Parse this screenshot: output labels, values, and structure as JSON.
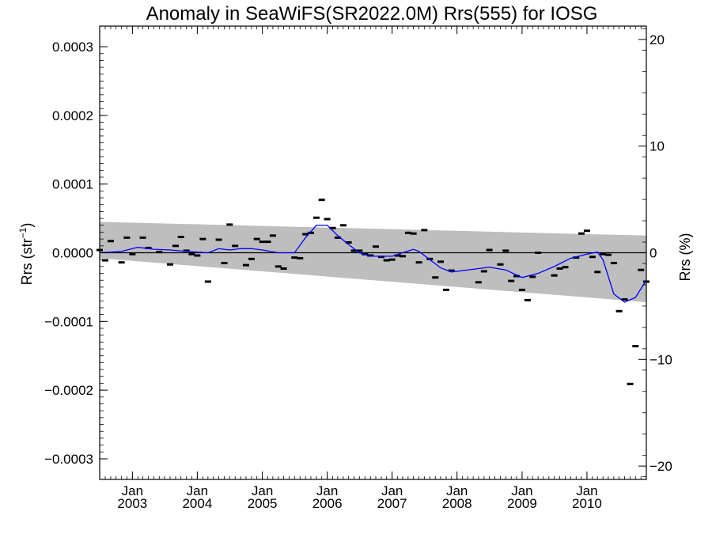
{
  "chart_data": {
    "type": "scatter",
    "title": "Anomaly in SeaWiFS(SR2022.0M) Rrs(555) for IOSG",
    "ylabel_left_base": "Rrs (str",
    "ylabel_left_sup": "−1",
    "ylabel_left_close": ")",
    "ylabel_right": "Rrs (%)",
    "x_range": [
      "2002-07-01",
      "2010-12-01"
    ],
    "y_range_left": [
      -0.00033,
      0.00033
    ],
    "y_range_right": [
      -21.25,
      21.25
    ],
    "x_ticks": [
      {
        "date": "2003-01-01",
        "month": "Jan",
        "year": "2003"
      },
      {
        "date": "2004-01-01",
        "month": "Jan",
        "year": "2004"
      },
      {
        "date": "2005-01-01",
        "month": "Jan",
        "year": "2005"
      },
      {
        "date": "2006-01-01",
        "month": "Jan",
        "year": "2006"
      },
      {
        "date": "2007-01-01",
        "month": "Jan",
        "year": "2007"
      },
      {
        "date": "2008-01-01",
        "month": "Jan",
        "year": "2008"
      },
      {
        "date": "2009-01-01",
        "month": "Jan",
        "year": "2009"
      },
      {
        "date": "2010-01-01",
        "month": "Jan",
        "year": "2010"
      }
    ],
    "y_ticks_left": [
      {
        "value": 0.0003,
        "label": "0.0003"
      },
      {
        "value": 0.0002,
        "label": "0.0002"
      },
      {
        "value": 0.0001,
        "label": "0.0001"
      },
      {
        "value": 0,
        "label": "0.0000"
      },
      {
        "value": -0.0001,
        "label": "−0.0001"
      },
      {
        "value": -0.0002,
        "label": "−0.0002"
      },
      {
        "value": -0.0003,
        "label": "−0.0003"
      }
    ],
    "y_ticks_right": [
      {
        "value": 20,
        "label": "20"
      },
      {
        "value": 10,
        "label": "10"
      },
      {
        "value": 0,
        "label": "0"
      },
      {
        "value": -10,
        "label": "−10"
      },
      {
        "value": -20,
        "label": "−20"
      }
    ],
    "zero_line": 0,
    "uncertainty_band": {
      "x": [
        "2002-07-01",
        "2010-12-01"
      ],
      "upper": [
        4.5e-05,
        2.5e-05
      ],
      "lower": [
        -8e-06,
        -7.2e-05
      ],
      "color": "#bebebe"
    },
    "colors": {
      "points": "#000000",
      "smooth": "#0000ff",
      "band": "#bebebe",
      "zero": "#000000"
    },
    "series": [
      {
        "kind": "monthly_anomaly",
        "points": [
          [
            "2002-07-01",
            4e-06
          ],
          [
            "2002-08-01",
            -1.1e-05
          ],
          [
            "2002-09-01",
            1.7e-05
          ],
          [
            "2002-11-01",
            -1.4e-05
          ],
          [
            "2002-12-01",
            2.2e-05
          ],
          [
            "2003-01-01",
            -2e-06
          ],
          [
            "2003-03-01",
            2.2e-05
          ],
          [
            "2003-04-01",
            7e-06
          ],
          [
            "2003-06-01",
            1e-06
          ],
          [
            "2003-08-01",
            -1.7e-05
          ],
          [
            "2003-09-01",
            1e-05
          ],
          [
            "2003-10-01",
            2.3e-05
          ],
          [
            "2003-11-01",
            3e-06
          ],
          [
            "2003-12-01",
            -2e-06
          ],
          [
            "2004-01-01",
            -4e-06
          ],
          [
            "2004-02-01",
            2e-05
          ],
          [
            "2004-03-01",
            -4.2e-05
          ],
          [
            "2004-05-01",
            1.9e-05
          ],
          [
            "2004-06-01",
            -1.5e-05
          ],
          [
            "2004-07-01",
            4.1e-05
          ],
          [
            "2004-08-01",
            1e-05
          ],
          [
            "2004-10-01",
            -1.8e-05
          ],
          [
            "2004-11-01",
            -9e-06
          ],
          [
            "2004-12-01",
            2e-05
          ],
          [
            "2005-01-01",
            1.6e-05
          ],
          [
            "2005-02-01",
            1.6e-05
          ],
          [
            "2005-03-01",
            2.5e-05
          ],
          [
            "2005-04-01",
            -2e-05
          ],
          [
            "2005-05-01",
            -2.3e-05
          ],
          [
            "2005-07-01",
            -7e-06
          ],
          [
            "2005-08-01",
            -8e-06
          ],
          [
            "2005-09-01",
            2.7e-05
          ],
          [
            "2005-10-01",
            2.9e-05
          ],
          [
            "2005-11-01",
            5.1e-05
          ],
          [
            "2005-12-01",
            7.7e-05
          ],
          [
            "2006-01-01",
            4.9e-05
          ],
          [
            "2006-02-01",
            3.6e-05
          ],
          [
            "2006-03-01",
            2.2e-05
          ],
          [
            "2006-04-01",
            4e-05
          ],
          [
            "2006-05-01",
            1.5e-05
          ],
          [
            "2006-06-01",
            3e-06
          ],
          [
            "2006-07-01",
            3e-06
          ],
          [
            "2006-08-01",
            -2e-06
          ],
          [
            "2006-09-01",
            -4e-06
          ],
          [
            "2006-10-01",
            9e-06
          ],
          [
            "2006-11-01",
            -6e-06
          ],
          [
            "2006-12-01",
            -1.1e-05
          ],
          [
            "2007-01-01",
            -1e-05
          ],
          [
            "2007-02-01",
            -4e-06
          ],
          [
            "2007-03-01",
            -5e-06
          ],
          [
            "2007-04-01",
            2.9e-05
          ],
          [
            "2007-05-01",
            2.8e-05
          ],
          [
            "2007-06-01",
            -1.4e-05
          ],
          [
            "2007-07-01",
            3.3e-05
          ],
          [
            "2007-08-01",
            -9e-06
          ],
          [
            "2007-09-01",
            -3.6e-05
          ],
          [
            "2007-10-01",
            -1.3e-05
          ],
          [
            "2007-11-01",
            -5.4e-05
          ],
          [
            "2007-12-01",
            -2.6e-05
          ],
          [
            "2008-05-01",
            -4.3e-05
          ],
          [
            "2008-06-01",
            -2.7e-05
          ],
          [
            "2008-07-01",
            4e-06
          ],
          [
            "2008-09-01",
            -1.7e-05
          ],
          [
            "2008-10-01",
            3e-06
          ],
          [
            "2008-11-01",
            -4.1e-05
          ],
          [
            "2008-12-01",
            -3.4e-05
          ],
          [
            "2009-01-01",
            -5.4e-05
          ],
          [
            "2009-02-01",
            -6.9e-05
          ],
          [
            "2009-03-01",
            -3.5e-05
          ],
          [
            "2009-04-01",
            0.0
          ],
          [
            "2009-07-01",
            -3.3e-05
          ],
          [
            "2009-08-01",
            -2.3e-05
          ],
          [
            "2009-09-01",
            -2.1e-05
          ],
          [
            "2009-11-01",
            -7e-06
          ],
          [
            "2009-12-01",
            2.8e-05
          ],
          [
            "2010-01-01",
            3.2e-05
          ],
          [
            "2010-02-01",
            -6e-06
          ],
          [
            "2010-03-01",
            -2.8e-05
          ],
          [
            "2010-04-01",
            -2e-06
          ],
          [
            "2010-05-01",
            -3e-06
          ],
          [
            "2010-06-01",
            -1.5e-05
          ],
          [
            "2010-07-01",
            -8.5e-05
          ],
          [
            "2010-08-01",
            -6.8e-05
          ],
          [
            "2010-09-01",
            -0.000191
          ],
          [
            "2010-10-01",
            -0.000136
          ],
          [
            "2010-11-01",
            -2.5e-05
          ],
          [
            "2010-12-01",
            -4.2e-05
          ]
        ]
      },
      {
        "kind": "smoothed",
        "points": [
          [
            "2002-07-01",
            0.0
          ],
          [
            "2002-11-01",
            2e-06
          ],
          [
            "2003-02-01",
            8e-06
          ],
          [
            "2003-05-01",
            5e-06
          ],
          [
            "2003-08-01",
            4e-06
          ],
          [
            "2003-11-01",
            2e-06
          ],
          [
            "2004-01-01",
            1e-06
          ],
          [
            "2004-03-01",
            0.0
          ],
          [
            "2004-05-01",
            6e-06
          ],
          [
            "2004-07-01",
            4e-06
          ],
          [
            "2004-09-01",
            6e-06
          ],
          [
            "2004-11-01",
            6e-06
          ],
          [
            "2005-01-01",
            4e-06
          ],
          [
            "2005-04-01",
            0.0
          ],
          [
            "2005-07-01",
            0.0
          ],
          [
            "2005-09-01",
            2.2e-05
          ],
          [
            "2005-11-01",
            4e-05
          ],
          [
            "2006-01-01",
            4e-05
          ],
          [
            "2006-03-01",
            2.5e-05
          ],
          [
            "2006-05-01",
            1.2e-05
          ],
          [
            "2006-07-01",
            0.0
          ],
          [
            "2006-09-01",
            -5e-06
          ],
          [
            "2007-01-01",
            -5e-06
          ],
          [
            "2007-03-01",
            0.0
          ],
          [
            "2007-05-01",
            5e-06
          ],
          [
            "2007-06-01",
            2e-06
          ],
          [
            "2007-08-01",
            -1e-05
          ],
          [
            "2007-10-01",
            -2.2e-05
          ],
          [
            "2007-12-01",
            -2.8e-05
          ],
          [
            "2008-04-01",
            -2.4e-05
          ],
          [
            "2008-07-01",
            -2.1e-05
          ],
          [
            "2008-10-01",
            -2.5e-05
          ],
          [
            "2009-01-01",
            -3.6e-05
          ],
          [
            "2009-04-01",
            -3e-05
          ],
          [
            "2009-07-01",
            -2e-05
          ],
          [
            "2009-10-01",
            -8e-06
          ],
          [
            "2010-01-01",
            -2e-06
          ],
          [
            "2010-03-01",
            1e-06
          ],
          [
            "2010-04-01",
            -1e-05
          ],
          [
            "2010-06-01",
            -6e-05
          ],
          [
            "2010-08-01",
            -7.2e-05
          ],
          [
            "2010-10-01",
            -6.5e-05
          ],
          [
            "2010-12-01",
            -4e-05
          ]
        ]
      }
    ]
  }
}
